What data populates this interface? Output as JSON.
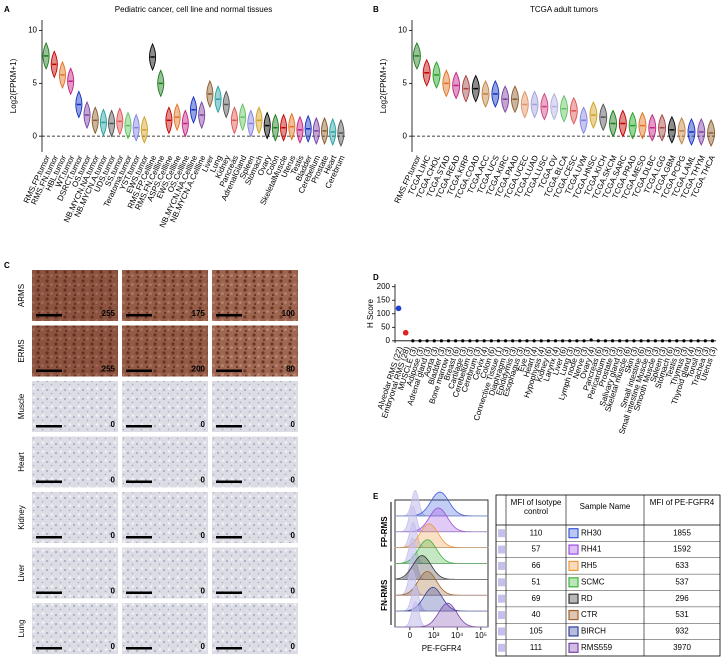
{
  "chart_data": [
    {
      "type": "violin",
      "label": "A",
      "title": "Pediatric cancer, cell line and normal tissues",
      "y_label": "Log2(FPKM+1)",
      "categories": [
        "RMS.FP.tumor",
        "RMS.FN.tumor",
        "HBL.tumor",
        "WT.tumor",
        "DSRCT.tumor",
        "OS.tumor",
        "NB.MYCN.NA.tumor",
        "NB.MYCN.A.tumor",
        "UDS.tumor",
        "SS.tumor",
        "Teratoma.tumor",
        "YST.tumor",
        "EWS.tumor",
        "RMS.FP.Cellline",
        "RMS.FN.Cellline",
        "ASPS.Cellline",
        "EWS.Cellline",
        "OS.Cellline",
        "NB.MYCN.NA.Cellline",
        "NB.MYCN.A.Cellline",
        "Liver",
        "Lung",
        "Kidney",
        "Pancreas",
        "AdrenalGland",
        "Spleen",
        "Stomach",
        "Ovary",
        "Colon",
        "SkeletalMuscle",
        "Uterus",
        "Testis",
        "Bladder",
        "Cerebellum",
        "Prostate",
        "Heart",
        "Cerebrum"
      ],
      "values": [
        7.6,
        6.8,
        5.8,
        5.2,
        3,
        2,
        1.5,
        1.3,
        1.2,
        1.4,
        1,
        0.8,
        0.6,
        7.5,
        5,
        1.5,
        1.8,
        1.2,
        2.5,
        2,
        4,
        3.5,
        3,
        1.5,
        1.8,
        1.2,
        1.5,
        1,
        0.8,
        0.8,
        0.9,
        0.6,
        0.7,
        0.5,
        0.5,
        0.4,
        0.3
      ],
      "ylim": [
        -1.5,
        11
      ],
      "yticks": [
        0,
        5,
        10
      ],
      "palette": [
        "#1a7a1a",
        "#c00000",
        "#e07020",
        "#c02080",
        "#1030c0",
        "#7a3fa0",
        "#8a5a2a",
        "#20a0a0",
        "#505050",
        "#e05050",
        "#60c060",
        "#8080e0",
        "#d0a020",
        "#000000"
      ]
    },
    {
      "type": "violin",
      "label": "B",
      "title": "TCGA adult tumors",
      "y_label": "Log2(FPKM+1)",
      "categories": [
        "RMS.FP.tumor",
        "TCGA.LIHC",
        "TCGA.CHOL",
        "TCGA.STAD",
        "TCGA.READ",
        "TCGA.KIRP",
        "TCGA.COAD",
        "TCGA.ACC",
        "TCGA.UCS",
        "TCGA.KIRC",
        "TCGA.PAAD",
        "TCGA.UCEC",
        "TCGA.LUAD",
        "TCGA.LUSC",
        "TCGA.OV",
        "TCGA.BLCA",
        "TCGA.CESC",
        "TCGA.UVM",
        "TCGA.HNSC",
        "TCGA.KICH",
        "TCGA.SKCM",
        "TCGA.SARC",
        "TCGA.PRAD",
        "TCGA.MESO",
        "TCGA.DLBC",
        "TCGA.LGG",
        "TCGA.GBM",
        "TCGA.PCPG",
        "TCGA.LAML",
        "TCGA.THYM",
        "TCGA.THCA"
      ],
      "values": [
        7.6,
        6,
        5.8,
        5,
        4.8,
        4.5,
        4.5,
        4,
        4,
        3.5,
        3.5,
        3,
        3,
        2.8,
        2.8,
        2.6,
        2.4,
        1.5,
        2,
        1.8,
        1.2,
        1.2,
        1,
        1,
        0.8,
        0.8,
        0.6,
        0.5,
        0.4,
        0.4,
        0.3
      ],
      "ylim": [
        -1.5,
        11
      ],
      "yticks": [
        0,
        5,
        10
      ],
      "palette": [
        "#1a7a1a",
        "#c00000",
        "#20a020",
        "#e07020",
        "#c02080",
        "#a04040",
        "#000000",
        "#c08040",
        "#1030c0",
        "#7a3fa0",
        "#8a5a2a",
        "#e09060",
        "#a0a0e0",
        "#d04080",
        "#b0b0e0",
        "#60c060",
        "#e05050",
        "#8080e0",
        "#d0a020",
        "#505050"
      ]
    },
    {
      "type": "dot",
      "label": "D",
      "y_label": "H Score",
      "categories": [
        "Alveolar RMS (22)",
        "Embryonal RMS (28)",
        "MUSCLE (3)",
        "Adipose (3)",
        "Adrenal gland (3)",
        "Aorta (3)",
        "Bladder (3)",
        "Bone marrow (3)",
        "Breast (6)",
        "Cartilage (3)",
        "Cerebellum (3)",
        "Cerebrum (3)",
        "Cervix (4)",
        "Colon (6)",
        "Connective Tissue (1)",
        "Diaphragm (3)",
        "Epididymis (3)",
        "Esophagus (3)",
        "Eye (3)",
        "Heart (4)",
        "Hypophysis (4)",
        "Kidney (6)",
        "Larynx (4)",
        "Liver (6)",
        "Lung (3)",
        "Lymph node (3)",
        "Nerve (3)",
        "Ovary (4)",
        "Pancreas (6)",
        "Pericardium (3)",
        "Prostate (3)",
        "Salivary gland (3)",
        "Skeletal muscle (6)",
        "Skin (3)",
        "Small intestine (6)",
        "Small intestine Muscle (3)",
        "Smooth Muscle (3)",
        "Spleen (3)",
        "Stomach (6)",
        "Testis (3)",
        "Thymus (3)",
        "Thyroid gland (4)",
        "Tonsil (3)",
        "Trachea (3)",
        "Uterus (3)"
      ],
      "values": [
        120,
        30,
        0,
        0,
        0,
        0,
        0,
        0,
        0,
        0,
        0,
        0,
        0,
        0,
        0,
        0,
        0,
        0,
        0,
        0,
        0,
        0,
        0,
        0,
        0,
        0,
        0,
        3,
        0,
        0,
        0,
        0,
        0,
        0,
        0,
        0,
        0,
        0,
        0,
        0,
        0,
        0,
        0,
        0,
        0
      ],
      "ylim": [
        -8,
        210
      ],
      "yticks": [
        0,
        50,
        100,
        150,
        200
      ],
      "color": "#000000",
      "highlight_colors": [
        "#1f3fd6",
        "#e0211f"
      ]
    },
    {
      "type": "flow",
      "label": "E",
      "x_label": "PE-FGFR4",
      "xlim": [
        -400,
        200000
      ],
      "xticks": [
        0,
        {
          "value": 1000,
          "label": "10³"
        },
        {
          "value": 10000,
          "label": "10⁴"
        },
        {
          "value": 100000,
          "label": "10⁵"
        }
      ],
      "isotype_color": "#c4c0ee",
      "columns": [
        "MFI of Isotype control",
        "Sample Name",
        "MFI of PE-FGFR4"
      ],
      "groups": [
        {
          "name": "FP-RMS",
          "samples": [
            {
              "isotype": 110,
              "name": "RH30",
              "value": 1855,
              "color": "#3b5bdb"
            },
            {
              "isotype": 57,
              "name": "RH41",
              "value": 1592,
              "color": "#9b4fe0"
            },
            {
              "isotype": 66,
              "name": "RH5",
              "value": 633,
              "color": "#f09a40"
            },
            {
              "isotype": 51,
              "name": "SCMC",
              "value": 537,
              "color": "#3cb43c"
            }
          ]
        },
        {
          "name": "FN-RMS",
          "samples": [
            {
              "isotype": 69,
              "name": "RD",
              "value": 296,
              "color": "#333333"
            },
            {
              "isotype": 40,
              "name": "CTR",
              "value": 531,
              "color": "#a0622a"
            },
            {
              "isotype": 105,
              "name": "BIRCH",
              "value": 932,
              "color": "#3040a0"
            },
            {
              "isotype": 111,
              "name": "RMS559",
              "value": 3970,
              "color": "#7a40a8"
            }
          ]
        }
      ]
    }
  ],
  "ihc": {
    "label": "C",
    "rows": [
      {
        "tissue": "ARMS",
        "scores": [
          255,
          175,
          100
        ]
      },
      {
        "tissue": "ERMS",
        "scores": [
          255,
          200,
          80
        ]
      },
      {
        "tissue": "Muscle",
        "scores": [
          0,
          0,
          0
        ]
      },
      {
        "tissue": "Heart",
        "scores": [
          0,
          0,
          0
        ]
      },
      {
        "tissue": "Kidney",
        "scores": [
          0,
          0,
          0
        ]
      },
      {
        "tissue": "Liver",
        "scores": [
          0,
          0,
          0
        ]
      },
      {
        "tissue": "Lung",
        "scores": [
          0,
          0,
          0
        ]
      }
    ]
  }
}
